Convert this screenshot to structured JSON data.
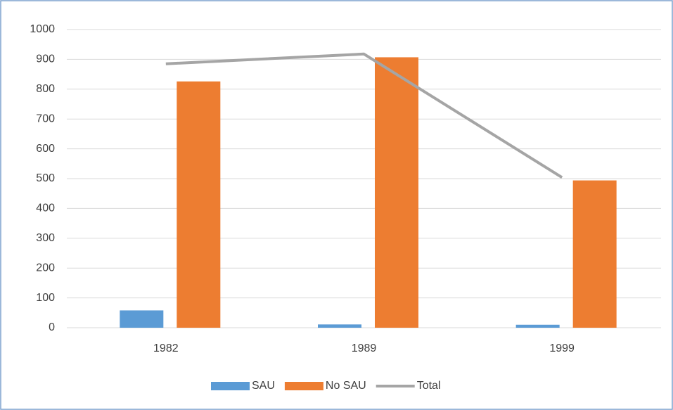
{
  "chart_data": {
    "type": "bar",
    "categories": [
      "1982",
      "1989",
      "1999"
    ],
    "series": [
      {
        "name": "SAU",
        "color": "#5b9bd5",
        "values": [
          58,
          11,
          10
        ]
      },
      {
        "name": "No SAU",
        "color": "#ed7d31",
        "values": [
          826,
          907,
          494
        ]
      },
      {
        "name": "Total",
        "color": "#a5a5a5",
        "type": "line",
        "values": [
          885,
          918,
          504
        ]
      }
    ],
    "ylim": [
      0,
      1000
    ],
    "yticks": [
      0,
      100,
      200,
      300,
      400,
      500,
      600,
      700,
      800,
      900,
      1000
    ],
    "grid": true,
    "legend": "bottom"
  }
}
